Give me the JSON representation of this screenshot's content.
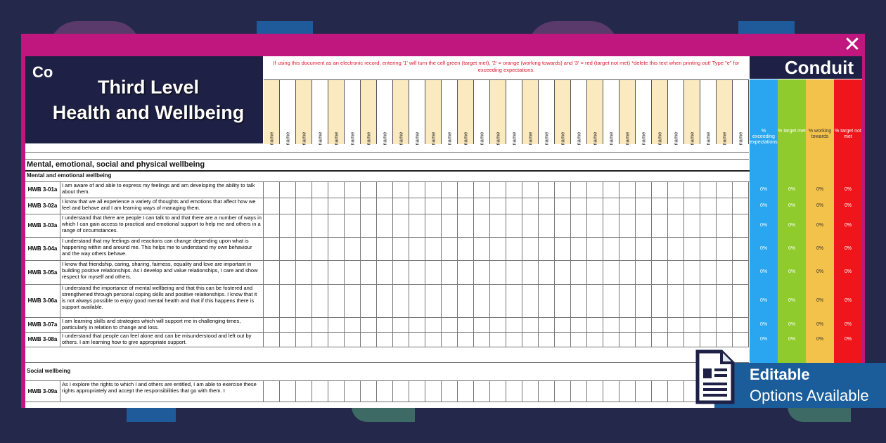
{
  "app": {
    "logo": "Co",
    "brand": "Conduit",
    "close_symbol": "✕"
  },
  "title": {
    "line1": "Third Level",
    "line2": "Health and Wellbeing"
  },
  "notice": "If using this document as an electronic record, entering '1' will turn the cell green (target met), '2' = orange (working towards) and '3' = red (target not met) *delete this text when printing out! Type \"e\" for exceeding expectations.",
  "name_columns": [
    "name",
    "name",
    "name",
    "name",
    "name",
    "name",
    "name",
    "name",
    "name",
    "name",
    "name",
    "name",
    "name",
    "name",
    "name",
    "name",
    "name",
    "name",
    "name",
    "name",
    "name",
    "name",
    "name",
    "name",
    "name",
    "name",
    "name",
    "name",
    "name",
    "name"
  ],
  "percent_columns": [
    {
      "label": "% exceeding expectations",
      "color": "#2aa6f0"
    },
    {
      "label": "% target met",
      "color": "#8fcb2d"
    },
    {
      "label": "% working towards",
      "color": "#f3c24a"
    },
    {
      "label": "% target not met",
      "color": "#f0151a"
    }
  ],
  "percent_value": "0%",
  "sections": {
    "main": "Mental, emotional, social and physical wellbeing",
    "sub1": "Mental and emotional wellbeing",
    "sub2": "Social wellbeing"
  },
  "rows": [
    {
      "code": "HWB 3-01a",
      "text": "I am aware of and able to express my feelings and am developing the ability to talk about them."
    },
    {
      "code": "HWB 3-02a",
      "text": "I know that we all experience a variety of thoughts and emotions that affect how we feel and behave and I am learning ways of managing them."
    },
    {
      "code": "HWB 3-03a",
      "text": "I understand that there are people I can talk to and that there are a number of ways in which I can gain access to practical and emotional support to help me and others in a range of circumstances."
    },
    {
      "code": "HWB 3-04a",
      "text": "I understand that my feelings and reactions can change depending upon what is happening within and around me. This helps me to understand my own behaviour and the way others behave."
    },
    {
      "code": "HWB 3-05a",
      "text": "I know that friendship, caring, sharing, fairness, equality and love are important in building positive relationships. As I develop and value relationships, I care and show respect for myself and others."
    },
    {
      "code": "HWB 3-06a",
      "text": "I understand the importance of mental wellbeing and that this can be fostered and strengthened through personal coping skills and positive relationships. I know that it is not always possible to enjoy good mental health and that if this happens there is support available."
    },
    {
      "code": "HWB 3-07a",
      "text": "I am learning skills and strategies which will support me in challenging times, particularly in relation to change and loss."
    },
    {
      "code": "HWB 3-08a",
      "text": "I understand that people can feel alone and can be misunderstood and left out by others. I am learning how to give appropriate support."
    }
  ],
  "row_social": {
    "code": "HWB 3-09a",
    "text": "As I explore the rights to which I and others are entitled, I am able to exercise these rights appropriately and accept the responsibilities that go with them. I"
  },
  "badge": {
    "line1": "Editable",
    "line2": "Options Available"
  }
}
